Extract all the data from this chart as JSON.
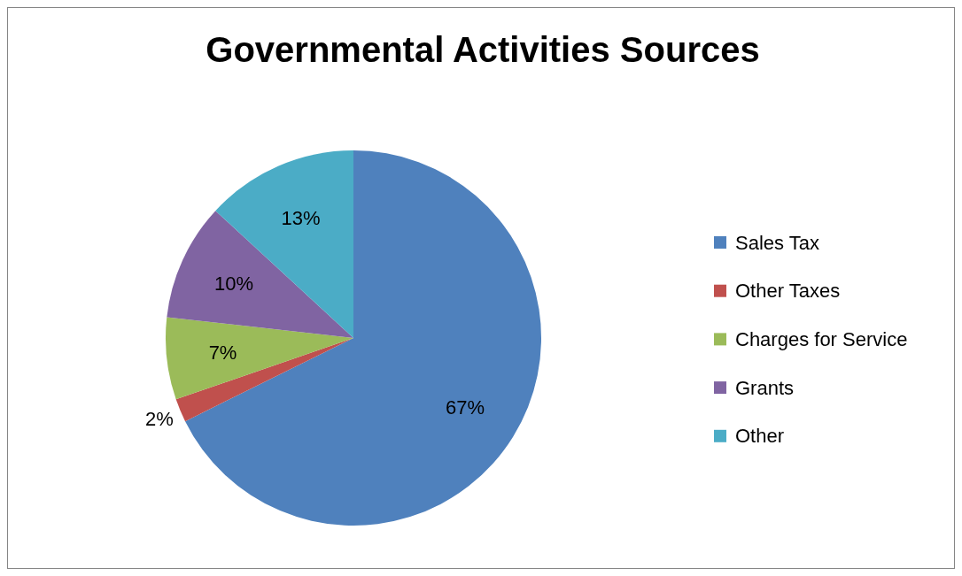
{
  "chart_data": {
    "type": "pie",
    "title": "Governmental Activities Sources",
    "categories": [
      "Sales Tax",
      "Other Taxes",
      "Charges for Service",
      "Grants",
      "Other"
    ],
    "values": [
      67,
      2,
      7,
      10,
      13
    ],
    "colors": [
      "#4f81bd",
      "#c0504d",
      "#9bbb59",
      "#8064a2",
      "#4bacc6"
    ],
    "value_labels": [
      "67%",
      "2%",
      "7%",
      "10%",
      "13%"
    ],
    "legend": "right"
  }
}
